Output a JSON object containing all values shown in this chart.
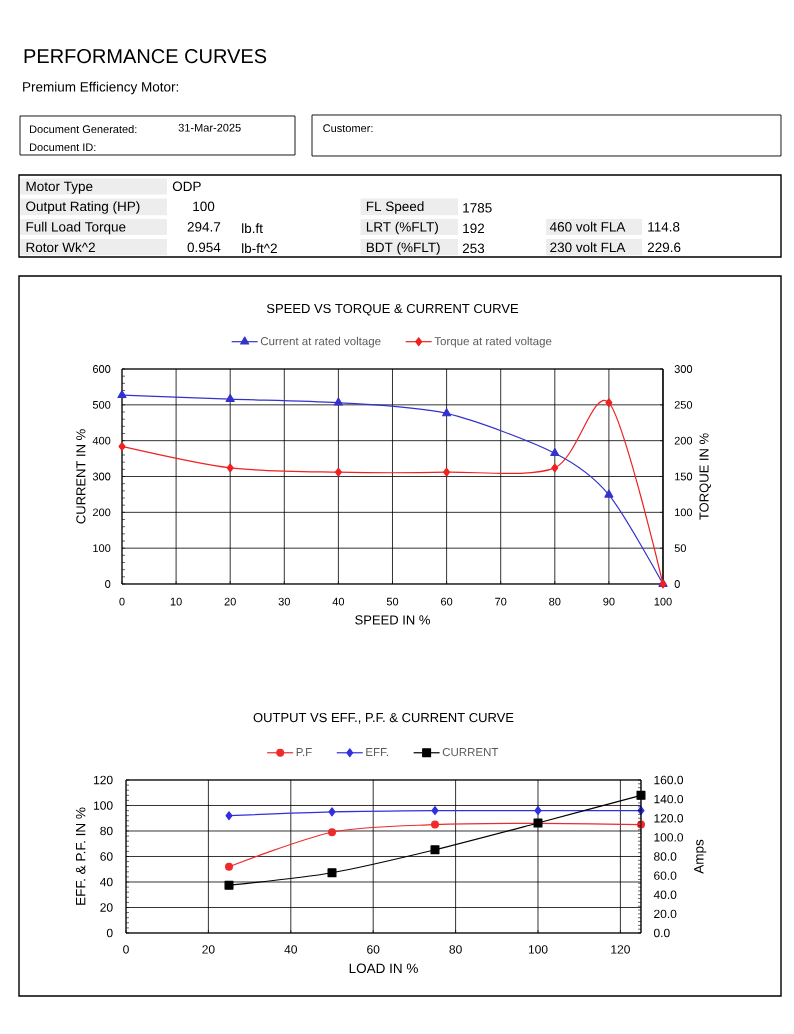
{
  "chart_data": [
    {
      "type": "other",
      "title": "PERFORMANCE CURVES",
      "subtitle": "Premium Efficiency Motor:",
      "annotations": [
        "Document Generated:",
        "31-Mar-2025",
        "Document ID:",
        "Customer:",
        "Motor Type",
        "ODP",
        "Output Rating (HP)",
        "100",
        "FL Speed",
        "1785",
        "Full Load Torque",
        "294.7",
        "lb.ft",
        "LRT (%FLT)",
        "192",
        "460 volt FLA",
        "114.8",
        "Rotor Wk^2",
        "0.954",
        "lb-ft^2",
        "BDT (%FLT)",
        "253",
        "230 volt FLA",
        "229.6"
      ]
    },
    {
      "type": "line",
      "title": "SPEED VS TORQUE & CURRENT CURVE",
      "xlabel": "SPEED IN %",
      "ylabel": "CURRENT IN %",
      "y2label": "TORQUE IN %",
      "x": [
        0,
        20,
        40,
        60,
        80,
        90,
        100
      ],
      "series": [
        {
          "name": "Current at rated voltage",
          "color": "#3333cc",
          "marker": "triangle",
          "values": [
            527,
            516,
            506,
            476,
            365,
            249,
            0
          ]
        },
        {
          "name": "Torque at rated voltage",
          "color": "#ee2222",
          "marker": "diamond",
          "axis": "y2",
          "values": [
            192,
            162,
            156,
            156,
            162,
            253,
            0
          ]
        }
      ],
      "xlim": [
        0,
        100
      ],
      "xticks": [
        0,
        10,
        20,
        30,
        40,
        50,
        60,
        70,
        80,
        90,
        100
      ],
      "ylim": [
        0,
        600
      ],
      "yticks": [
        0,
        100,
        200,
        300,
        400,
        500,
        600
      ],
      "y2lim": [
        0,
        300
      ],
      "y2ticks": [
        0,
        50,
        100,
        150,
        200,
        250,
        300
      ],
      "grid": true,
      "legend": "top",
      "line_style": "solid"
    },
    {
      "type": "line",
      "title": "OUTPUT VS EFF., P.F. & CURRENT CURVE",
      "xlabel": "LOAD IN %",
      "ylabel": "EFF. & P.F. IN %",
      "y2label": "Amps",
      "x": [
        25,
        50,
        75,
        100,
        125
      ],
      "series": [
        {
          "name": "P.F",
          "color": "#ee2b2b",
          "marker": "circle",
          "values": [
            52,
            79,
            85,
            86,
            85
          ]
        },
        {
          "name": "EFF.",
          "color": "#3030e0",
          "marker": "diamond",
          "values": [
            92,
            95,
            96,
            96,
            96
          ]
        },
        {
          "name": "CURRENT",
          "color": "#000000",
          "marker": "square",
          "axis": "y2",
          "values": [
            50,
            63,
            87,
            115,
            144
          ]
        }
      ],
      "xlim": [
        0,
        125
      ],
      "xticks": [
        0,
        20,
        40,
        60,
        80,
        100,
        120
      ],
      "ylim": [
        0,
        120
      ],
      "yticks": [
        0,
        20,
        40,
        60,
        80,
        100,
        120
      ],
      "y2lim": [
        0,
        160
      ],
      "y2ticks": [
        {
          "value": 0,
          "label": "0.0"
        },
        {
          "value": 20,
          "label": "20.0"
        },
        {
          "value": 40,
          "label": "40.0"
        },
        {
          "value": 60,
          "label": "60.0"
        },
        {
          "value": 80,
          "label": "80.0"
        },
        {
          "value": 100,
          "label": "100.0"
        },
        {
          "value": 120,
          "label": "120.0"
        },
        {
          "value": 140,
          "label": "140.0"
        },
        {
          "value": 160,
          "label": "160.0"
        }
      ],
      "grid": true,
      "legend": "top",
      "line_style": "solid"
    }
  ]
}
